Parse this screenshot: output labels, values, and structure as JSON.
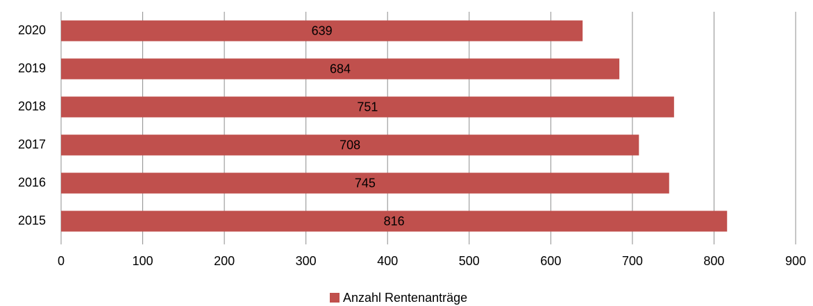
{
  "chart_data": {
    "type": "bar",
    "orientation": "horizontal",
    "categories": [
      "2020",
      "2019",
      "2018",
      "2017",
      "2016",
      "2015"
    ],
    "series": [
      {
        "name": "Anzahl Rentenanträge",
        "color": "#c0504d",
        "values": [
          639,
          684,
          751,
          708,
          745,
          816
        ]
      }
    ],
    "xlim": [
      0,
      900
    ],
    "xticks": [
      0,
      100,
      200,
      300,
      400,
      500,
      600,
      700,
      800,
      900
    ],
    "grid": true,
    "legend": "bottom",
    "data_labels": true
  }
}
